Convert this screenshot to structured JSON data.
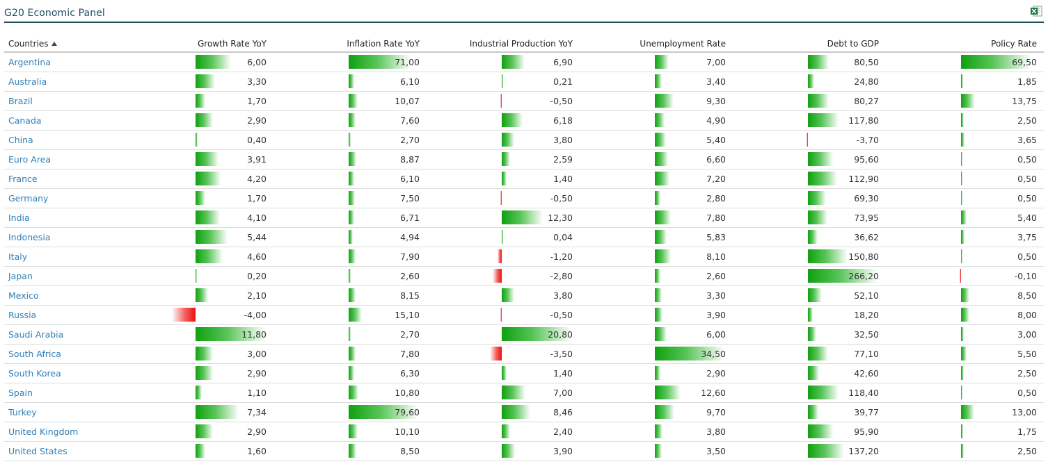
{
  "panel": {
    "title": "G20 Economic Panel",
    "export_icon": "excel-icon",
    "accent_color": "#1f4e63"
  },
  "colors": {
    "positive_bar": "#0fa00f",
    "negative_bar": "#ee0f0f",
    "link": "#2f7fb8"
  },
  "table": {
    "headers": {
      "country": "Countries",
      "growth": "Growth Rate YoY",
      "inflation": "Inflation Rate YoY",
      "industrial": "Industrial Production YoY",
      "unemployment": "Unemployment Rate",
      "debt": "Debt to GDP",
      "policy": "Policy Rate"
    },
    "sort_icon": "sort-ascending-icon",
    "rows": [
      {
        "country": "Argentina",
        "growth": "6,00",
        "inflation": "71,00",
        "industrial": "6,90",
        "unemployment": "7,00",
        "debt": "80,50",
        "policy": "69,50"
      },
      {
        "country": "Australia",
        "growth": "3,30",
        "inflation": "6,10",
        "industrial": "0,21",
        "unemployment": "3,40",
        "debt": "24,80",
        "policy": "1,85"
      },
      {
        "country": "Brazil",
        "growth": "1,70",
        "inflation": "10,07",
        "industrial": "-0,50",
        "unemployment": "9,30",
        "debt": "80,27",
        "policy": "13,75"
      },
      {
        "country": "Canada",
        "growth": "2,90",
        "inflation": "7,60",
        "industrial": "6,18",
        "unemployment": "4,90",
        "debt": "117,80",
        "policy": "2,50"
      },
      {
        "country": "China",
        "growth": "0,40",
        "inflation": "2,70",
        "industrial": "3,80",
        "unemployment": "5,40",
        "debt": "-3,70",
        "policy": "3,65"
      },
      {
        "country": "Euro Area",
        "growth": "3,91",
        "inflation": "8,87",
        "industrial": "2,59",
        "unemployment": "6,60",
        "debt": "95,60",
        "policy": "0,50"
      },
      {
        "country": "France",
        "growth": "4,20",
        "inflation": "6,10",
        "industrial": "1,40",
        "unemployment": "7,20",
        "debt": "112,90",
        "policy": "0,50"
      },
      {
        "country": "Germany",
        "growth": "1,70",
        "inflation": "7,50",
        "industrial": "-0,50",
        "unemployment": "2,80",
        "debt": "69,30",
        "policy": "0,50"
      },
      {
        "country": "India",
        "growth": "4,10",
        "inflation": "6,71",
        "industrial": "12,30",
        "unemployment": "7,80",
        "debt": "73,95",
        "policy": "5,40"
      },
      {
        "country": "Indonesia",
        "growth": "5,44",
        "inflation": "4,94",
        "industrial": "0,04",
        "unemployment": "5,83",
        "debt": "36,62",
        "policy": "3,75"
      },
      {
        "country": "Italy",
        "growth": "4,60",
        "inflation": "7,90",
        "industrial": "-1,20",
        "unemployment": "8,10",
        "debt": "150,80",
        "policy": "0,50"
      },
      {
        "country": "Japan",
        "growth": "0,20",
        "inflation": "2,60",
        "industrial": "-2,80",
        "unemployment": "2,60",
        "debt": "266,20",
        "policy": "-0,10"
      },
      {
        "country": "Mexico",
        "growth": "2,10",
        "inflation": "8,15",
        "industrial": "3,80",
        "unemployment": "3,30",
        "debt": "52,10",
        "policy": "8,50"
      },
      {
        "country": "Russia",
        "growth": "-4,00",
        "inflation": "15,10",
        "industrial": "-0,50",
        "unemployment": "3,90",
        "debt": "18,20",
        "policy": "8,00"
      },
      {
        "country": "Saudi Arabia",
        "growth": "11,80",
        "inflation": "2,70",
        "industrial": "20,80",
        "unemployment": "6,00",
        "debt": "32,50",
        "policy": "3,00"
      },
      {
        "country": "South Africa",
        "growth": "3,00",
        "inflation": "7,80",
        "industrial": "-3,50",
        "unemployment": "34,50",
        "debt": "77,10",
        "policy": "5,50"
      },
      {
        "country": "South Korea",
        "growth": "2,90",
        "inflation": "6,30",
        "industrial": "1,40",
        "unemployment": "2,90",
        "debt": "42,60",
        "policy": "2,50"
      },
      {
        "country": "Spain",
        "growth": "1,10",
        "inflation": "10,80",
        "industrial": "7,00",
        "unemployment": "12,60",
        "debt": "118,40",
        "policy": "0,50"
      },
      {
        "country": "Turkey",
        "growth": "7,34",
        "inflation": "79,60",
        "industrial": "8,46",
        "unemployment": "9,70",
        "debt": "39,77",
        "policy": "13,00"
      },
      {
        "country": "United Kingdom",
        "growth": "2,90",
        "inflation": "10,10",
        "industrial": "2,40",
        "unemployment": "3,80",
        "debt": "95,90",
        "policy": "1,75"
      },
      {
        "country": "United States",
        "growth": "1,60",
        "inflation": "8,50",
        "industrial": "3,90",
        "unemployment": "3,50",
        "debt": "137,20",
        "policy": "2,50"
      }
    ]
  }
}
